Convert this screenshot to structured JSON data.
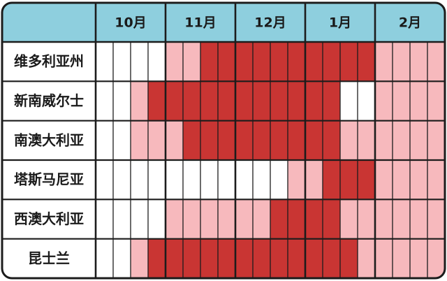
{
  "chart_data": {
    "type": "heatmap",
    "months": [
      "10月",
      "11月",
      "12月",
      "1月",
      "2月"
    ],
    "regions": [
      "维多利亚州",
      "新南威尔士",
      "南澳大利亚",
      "塔斯马尼亚",
      "西澳大利亚",
      "昆士兰"
    ],
    "levels": [
      [
        0,
        0,
        0,
        0,
        1,
        1,
        2,
        2,
        2,
        2,
        2,
        2,
        2,
        2,
        2,
        2,
        1,
        1,
        1,
        1
      ],
      [
        0,
        0,
        1,
        2,
        2,
        2,
        2,
        2,
        2,
        2,
        2,
        2,
        2,
        2,
        0,
        0,
        1,
        1,
        1,
        1
      ],
      [
        0,
        0,
        1,
        1,
        1,
        2,
        2,
        2,
        2,
        2,
        2,
        2,
        2,
        2,
        1,
        1,
        1,
        1,
        1,
        1
      ],
      [
        0,
        0,
        0,
        0,
        0,
        0,
        0,
        0,
        0,
        0,
        0,
        1,
        1,
        2,
        2,
        2,
        1,
        1,
        1,
        1
      ],
      [
        0,
        0,
        0,
        0,
        1,
        1,
        1,
        1,
        1,
        1,
        2,
        2,
        2,
        2,
        1,
        1,
        1,
        1,
        1,
        1
      ],
      [
        0,
        0,
        1,
        2,
        2,
        2,
        2,
        2,
        2,
        2,
        2,
        2,
        2,
        2,
        2,
        1,
        1,
        1,
        1,
        1
      ]
    ],
    "level_colors": [
      "#ffffff",
      "#f7b9bd",
      "#c93533"
    ],
    "header_color": "#8ecfde",
    "grid_color": "#1c1c1c",
    "weeks_per_month": 4
  }
}
